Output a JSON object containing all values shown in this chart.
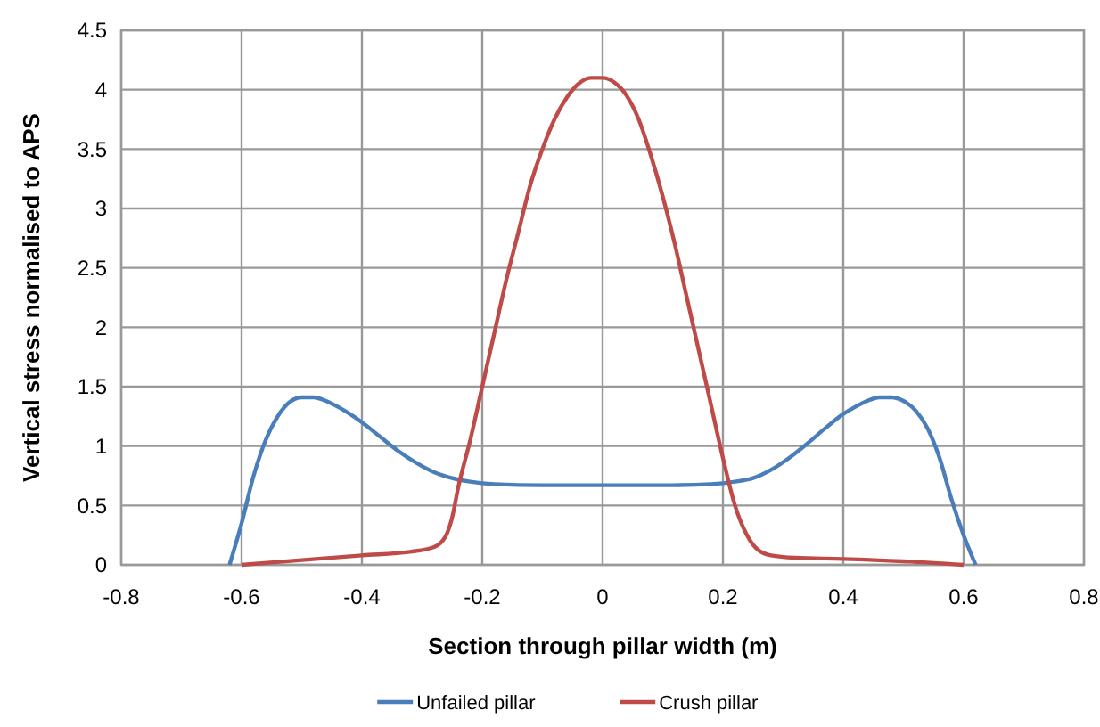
{
  "chart_data": {
    "type": "line",
    "xlabel": "Section through pillar width (m)",
    "ylabel": "Vertical stress normalised to APS",
    "xlim": [
      -0.8,
      0.8
    ],
    "xticks": [
      -0.8,
      -0.6,
      -0.4,
      -0.2,
      0,
      0.2,
      0.4,
      0.6,
      0.8
    ],
    "ylim": [
      0,
      4.5
    ],
    "yticks": [
      0,
      0.5,
      1,
      1.5,
      2,
      2.5,
      3,
      3.5,
      4,
      4.5
    ],
    "grid": true,
    "legend": "bottom",
    "line_style": "solid",
    "series": [
      {
        "name": "Unfailed pillar",
        "color": "#4a7ebb",
        "x": [
          -0.62,
          -0.6,
          -0.58,
          -0.56,
          -0.54,
          -0.52,
          -0.5,
          -0.48,
          -0.46,
          -0.44,
          -0.42,
          -0.4,
          -0.37,
          -0.34,
          -0.31,
          -0.28,
          -0.25,
          -0.22,
          -0.18,
          -0.1,
          0,
          0.1,
          0.18,
          0.22,
          0.25,
          0.28,
          0.31,
          0.34,
          0.37,
          0.4,
          0.42,
          0.44,
          0.46,
          0.48,
          0.5,
          0.52,
          0.54,
          0.56,
          0.58,
          0.6,
          0.62
        ],
        "values": [
          0,
          0.35,
          0.75,
          1.05,
          1.25,
          1.37,
          1.41,
          1.41,
          1.38,
          1.33,
          1.27,
          1.2,
          1.08,
          0.96,
          0.86,
          0.78,
          0.73,
          0.7,
          0.68,
          0.67,
          0.67,
          0.67,
          0.68,
          0.7,
          0.73,
          0.8,
          0.9,
          1.02,
          1.15,
          1.27,
          1.33,
          1.38,
          1.41,
          1.41,
          1.38,
          1.3,
          1.15,
          0.9,
          0.55,
          0.25,
          0
        ]
      },
      {
        "name": "Crush pillar",
        "color": "#be4b48",
        "x": [
          -0.6,
          -0.5,
          -0.4,
          -0.32,
          -0.28,
          -0.26,
          -0.25,
          -0.24,
          -0.22,
          -0.2,
          -0.18,
          -0.16,
          -0.14,
          -0.12,
          -0.1,
          -0.08,
          -0.06,
          -0.04,
          -0.02,
          0,
          0.02,
          0.04,
          0.06,
          0.08,
          0.1,
          0.12,
          0.14,
          0.16,
          0.18,
          0.2,
          0.22,
          0.24,
          0.25,
          0.26,
          0.28,
          0.32,
          0.4,
          0.5,
          0.6
        ],
        "values": [
          0,
          0.04,
          0.08,
          0.11,
          0.15,
          0.25,
          0.4,
          0.65,
          1.05,
          1.5,
          1.95,
          2.4,
          2.8,
          3.2,
          3.5,
          3.75,
          3.93,
          4.05,
          4.1,
          4.1,
          4.06,
          3.95,
          3.75,
          3.45,
          3.1,
          2.7,
          2.25,
          1.8,
          1.35,
          0.9,
          0.5,
          0.25,
          0.17,
          0.12,
          0.08,
          0.06,
          0.05,
          0.03,
          0
        ]
      }
    ]
  }
}
